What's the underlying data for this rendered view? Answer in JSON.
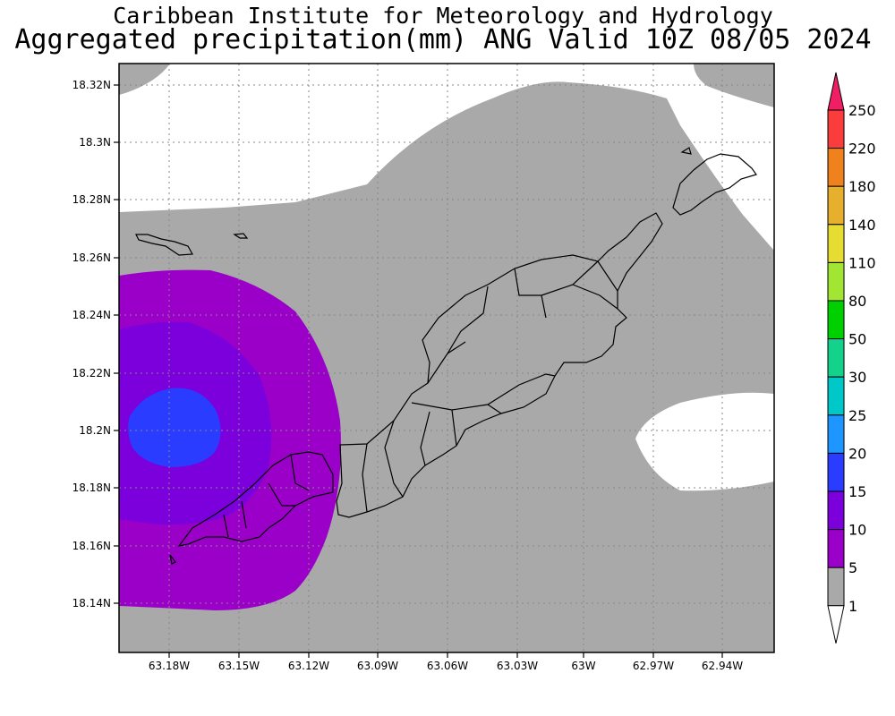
{
  "header": {
    "line1": "Caribbean Institute for Meteorology and Hydrology",
    "line2": "Aggregated precipitation(mm) ANG Valid 10Z 08/05 2024"
  },
  "map": {
    "lat_ticks": [
      "18.32N",
      "18.3N",
      "18.28N",
      "18.26N",
      "18.24N",
      "18.22N",
      "18.2N",
      "18.18N",
      "18.16N",
      "18.14N"
    ],
    "lon_ticks": [
      "63.18W",
      "63.15W",
      "63.12W",
      "63.09W",
      "63.06W",
      "63.03W",
      "63W",
      "62.97W",
      "62.94W"
    ],
    "grid": true,
    "ocean_color": "#ffffff",
    "shading": [
      {
        "range": "1-5 mm",
        "color": "#a9a9a9"
      },
      {
        "range": "5-10 mm",
        "color": "#9b00c8"
      },
      {
        "range": "10-15 mm",
        "color": "#7b00dc"
      },
      {
        "range": "15-20 mm",
        "color": "#2a3cff"
      }
    ]
  },
  "colorbar": {
    "labels": [
      "250",
      "220",
      "180",
      "140",
      "110",
      "80",
      "50",
      "30",
      "25",
      "20",
      "15",
      "10",
      "5",
      "1"
    ],
    "colors": [
      "#f01e64",
      "#fa3c3c",
      "#f0821e",
      "#e6af2d",
      "#e6dc32",
      "#a0e632",
      "#00d000",
      "#14d28c",
      "#00c8c8",
      "#1e96ff",
      "#2a3cff",
      "#7b00dc",
      "#9b00c8",
      "#a9a9a9",
      "#ffffff"
    ]
  }
}
